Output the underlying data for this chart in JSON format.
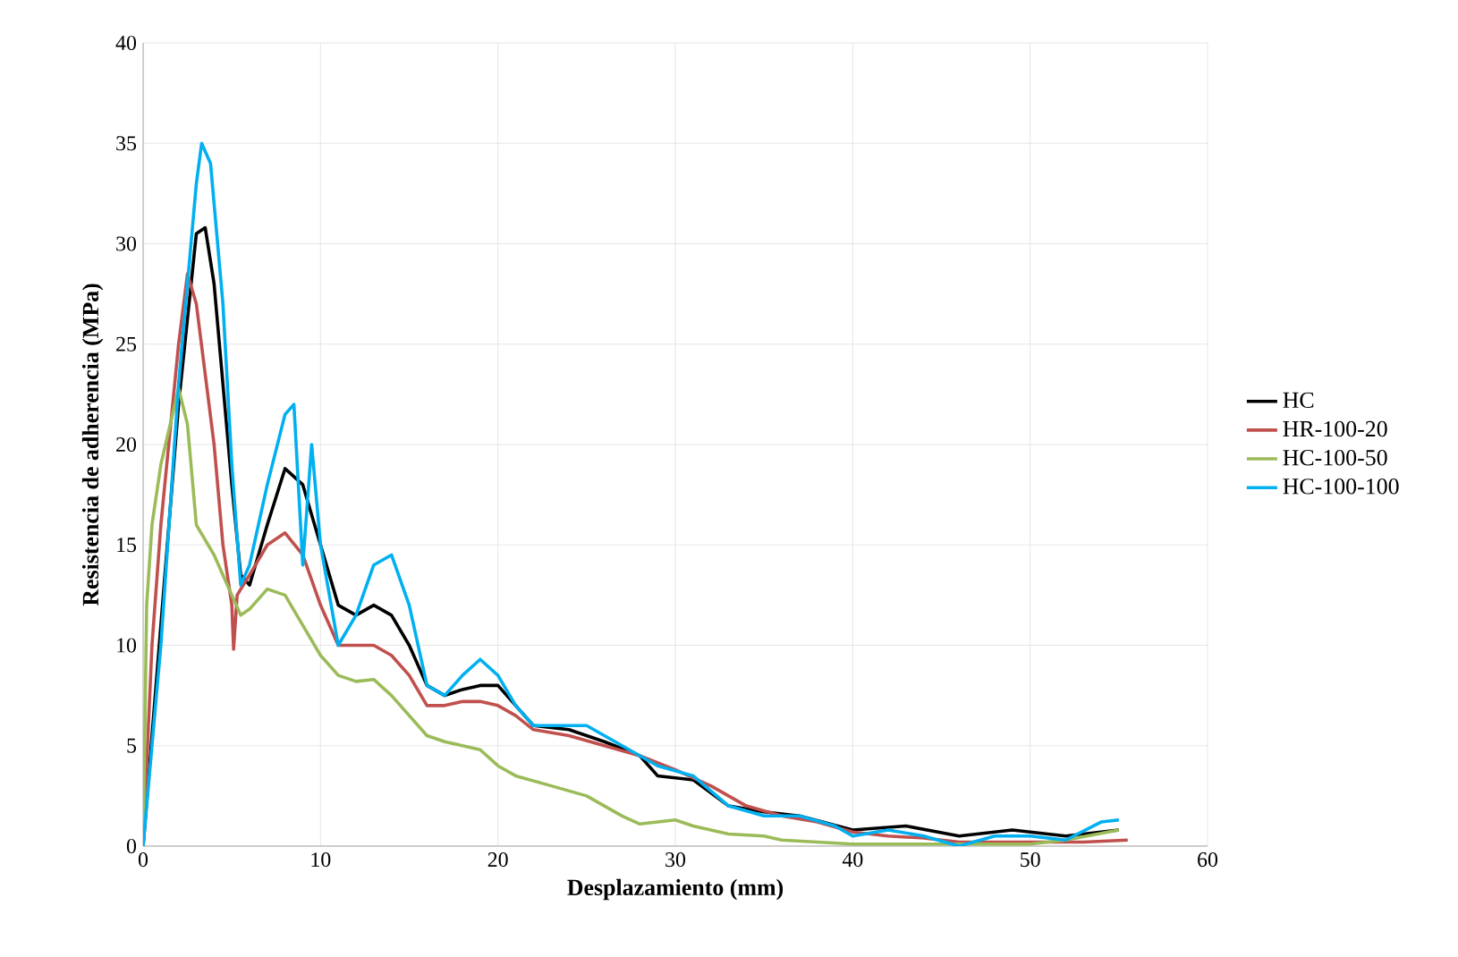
{
  "chart_data": {
    "type": "line",
    "xlabel": "Desplazamiento (mm)",
    "ylabel": "Resistencia de adherencia  (MPa)",
    "xlim": [
      0,
      60
    ],
    "xticks": [
      0,
      10,
      20,
      30,
      40,
      50,
      60
    ],
    "ylim": [
      0,
      40
    ],
    "yticks": [
      0,
      5,
      10,
      15,
      20,
      25,
      30,
      35,
      40
    ],
    "grid": true,
    "legend": "right",
    "marker": "none",
    "line_style": "solid",
    "series": [
      {
        "name": "HC",
        "color": "#000000",
        "x": [
          0,
          1,
          2,
          3,
          3.5,
          4,
          5,
          5.5,
          6,
          7,
          8,
          9,
          10,
          11,
          12,
          13,
          14,
          15,
          16,
          17,
          18,
          19,
          20,
          21,
          22,
          24,
          26,
          28,
          29,
          31,
          33,
          35,
          37,
          40,
          43,
          46,
          49,
          52,
          55
        ],
        "values": [
          0,
          null,
          22,
          30.5,
          30.8,
          28,
          18,
          13.5,
          13,
          16,
          18.8,
          18,
          15,
          12,
          11.5,
          12,
          11.5,
          10,
          8,
          7.5,
          7.8,
          8,
          8,
          7,
          6,
          5.8,
          5.2,
          4.5,
          3.5,
          3.3,
          2,
          1.7,
          1.5,
          0.8,
          1,
          0.5,
          0.8,
          0.5,
          0.8
        ]
      },
      {
        "name": "HR-100-20",
        "color": "#c0504d",
        "x": [
          0,
          0.5,
          1,
          2,
          2.5,
          3,
          4,
          4.5,
          5,
          5.1,
          5.3,
          6,
          7,
          8,
          9,
          10,
          11,
          12,
          13,
          14,
          15,
          16,
          17,
          18,
          19,
          20,
          21,
          22,
          24,
          26,
          28,
          30,
          32,
          34,
          36,
          38,
          40,
          42,
          44,
          46,
          50,
          53,
          55.5
        ],
        "values": [
          0,
          10,
          16,
          25,
          28.5,
          27,
          20,
          15,
          12,
          9.8,
          12.5,
          13.5,
          15,
          15.6,
          14.5,
          12,
          10,
          10,
          10,
          9.5,
          8.5,
          7,
          7,
          7.2,
          7.2,
          7,
          6.5,
          5.8,
          5.5,
          5,
          4.5,
          3.8,
          3,
          2,
          1.5,
          1.2,
          0.7,
          0.5,
          0.4,
          0.2,
          0.2,
          0.2,
          0.3
        ]
      },
      {
        "name": "HC-100-50",
        "color": "#9bbb59",
        "x": [
          0,
          0.2,
          0.5,
          1,
          2,
          2.5,
          3,
          4,
          5,
          5.5,
          6,
          7,
          8,
          9,
          10,
          11,
          12,
          13,
          14,
          15,
          16,
          17,
          18,
          19,
          20,
          21,
          23,
          25,
          27,
          28,
          29,
          30,
          31,
          33,
          35,
          36,
          40,
          45,
          50,
          52,
          55
        ],
        "values": [
          0,
          12,
          16,
          19,
          22.8,
          21,
          16,
          14.5,
          12.5,
          11.5,
          11.8,
          12.8,
          12.5,
          11,
          9.5,
          8.5,
          8.2,
          8.3,
          7.5,
          6.5,
          5.5,
          5.2,
          5,
          4.8,
          4,
          3.5,
          3,
          2.5,
          1.5,
          1.1,
          1.2,
          1.3,
          1,
          0.6,
          0.5,
          0.3,
          0.1,
          0.1,
          0.1,
          0.3,
          0.8
        ]
      },
      {
        "name": "HC-100-100",
        "color": "#00b0f0",
        "x": [
          0,
          1,
          2,
          3,
          3.3,
          3.8,
          4.5,
          5,
          5.5,
          6,
          7,
          8,
          8.5,
          9,
          9.5,
          10,
          11,
          12,
          13,
          14,
          15,
          16,
          17,
          18,
          19,
          20,
          21,
          22,
          24,
          25,
          27,
          29,
          31,
          33,
          35,
          37,
          39,
          40,
          42,
          44,
          46,
          48,
          50,
          52,
          54,
          55
        ],
        "values": [
          0,
          10,
          23,
          33,
          35,
          34,
          27,
          19,
          13,
          14,
          18,
          21.5,
          22,
          14,
          20,
          15,
          10,
          11.5,
          14,
          14.5,
          12,
          8,
          7.5,
          8.5,
          9.3,
          8.5,
          7,
          6,
          6,
          6,
          5,
          4,
          3.5,
          2,
          1.5,
          1.5,
          1,
          0.5,
          0.8,
          0.5,
          0,
          0.5,
          0.5,
          0.3,
          1.2,
          1.3
        ]
      }
    ]
  }
}
